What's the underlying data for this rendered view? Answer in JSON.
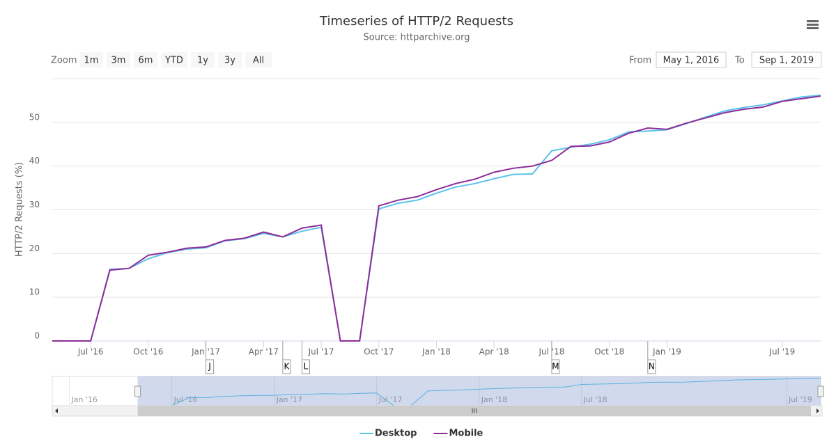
{
  "chart_data": {
    "type": "line",
    "title": "Timeseries of HTTP/2 Requests",
    "subtitle": "Source: httparchive.org",
    "y_axis_title": "HTTP/2 Requests (%)",
    "x": [
      "2016-05",
      "2016-06",
      "2016-07",
      "2016-08",
      "2016-09",
      "2016-10",
      "2016-11",
      "2016-12",
      "2017-01",
      "2017-02",
      "2017-03",
      "2017-04",
      "2017-05",
      "2017-06",
      "2017-07",
      "2017-08",
      "2017-09",
      "2017-10",
      "2017-11",
      "2017-12",
      "2018-01",
      "2018-02",
      "2018-03",
      "2018-04",
      "2018-05",
      "2018-06",
      "2018-07",
      "2018-08",
      "2018-09",
      "2018-10",
      "2018-11",
      "2018-12",
      "2019-01",
      "2019-02",
      "2019-03",
      "2019-04",
      "2019-05",
      "2019-06",
      "2019-07",
      "2019-08",
      "2019-09"
    ],
    "series": [
      {
        "name": "Desktop",
        "color": "#5bc2eb",
        "values": [
          0,
          0,
          0,
          16.4,
          16.6,
          18.8,
          20.2,
          21.0,
          21.3,
          22.9,
          23.4,
          24.6,
          23.8,
          25.1,
          26.0,
          0,
          0,
          30.2,
          31.5,
          32.2,
          33.8,
          35.2,
          36.0,
          37.1,
          38.1,
          38.2,
          43.5,
          44.3,
          45.0,
          46.0,
          47.8,
          48.0,
          48.3,
          49.7,
          51.2,
          52.6,
          53.4,
          54.0,
          54.9,
          55.8,
          56.2
        ]
      },
      {
        "name": "Mobile",
        "color": "#8e2c9a",
        "values": [
          0,
          0,
          0,
          16.2,
          16.6,
          19.6,
          20.3,
          21.2,
          21.5,
          23.0,
          23.5,
          24.9,
          23.8,
          25.8,
          26.5,
          0,
          0,
          30.9,
          32.2,
          33.0,
          34.6,
          36.0,
          37.0,
          38.6,
          39.5,
          40.0,
          41.3,
          44.5,
          44.6,
          45.5,
          47.5,
          48.7,
          48.4,
          49.8,
          51.0,
          52.2,
          53.0,
          53.5,
          54.8,
          55.4,
          56.0
        ]
      }
    ],
    "xlim": [
      "2016-05",
      "2019-09"
    ],
    "xticks": [
      {
        "value": "2016-07",
        "label": "Jul '16"
      },
      {
        "value": "2016-10",
        "label": "Oct '16"
      },
      {
        "value": "2017-01",
        "label": "Jan '17"
      },
      {
        "value": "2017-04",
        "label": "Apr '17"
      },
      {
        "value": "2017-07",
        "label": "Jul '17"
      },
      {
        "value": "2017-10",
        "label": "Oct '17"
      },
      {
        "value": "2018-01",
        "label": "Jan '18"
      },
      {
        "value": "2018-04",
        "label": "Apr '18"
      },
      {
        "value": "2018-07",
        "label": "Jul '18"
      },
      {
        "value": "2018-10",
        "label": "Oct '18"
      },
      {
        "value": "2019-01",
        "label": "Jan '19"
      },
      {
        "value": "2019-07",
        "label": "Jul '19"
      }
    ],
    "ylim": [
      0,
      60
    ],
    "yticks": [
      0,
      10,
      20,
      30,
      40,
      50
    ],
    "grid": true,
    "legend": "bottom",
    "flags": [
      {
        "label": "J",
        "x": "2017-01"
      },
      {
        "label": "K",
        "x": "2017-05"
      },
      {
        "label": "L",
        "x": "2017-06"
      },
      {
        "label": "M",
        "x": "2018-07"
      },
      {
        "label": "N",
        "x": "2018-12"
      }
    ],
    "navigator": {
      "xlim": [
        "2015-12",
        "2019-09"
      ],
      "xticks": [
        {
          "value": "2016-01",
          "label": "Jan '16"
        },
        {
          "value": "2016-07",
          "label": "Jul '16"
        },
        {
          "value": "2017-01",
          "label": "Jan '17"
        },
        {
          "value": "2017-07",
          "label": "Jul '17"
        },
        {
          "value": "2018-01",
          "label": "Jan '18"
        },
        {
          "value": "2018-07",
          "label": "Jul '18"
        },
        {
          "value": "2019-07",
          "label": "Jul '19"
        }
      ],
      "scrollbar_grip": "III"
    },
    "range_selector": {
      "zoom_label": "Zoom",
      "buttons": [
        "1m",
        "3m",
        "6m",
        "YTD",
        "1y",
        "3y",
        "All"
      ],
      "from_label": "From",
      "from": "May 1, 2016",
      "to_label": "To",
      "to": "Sep 1, 2019"
    }
  }
}
